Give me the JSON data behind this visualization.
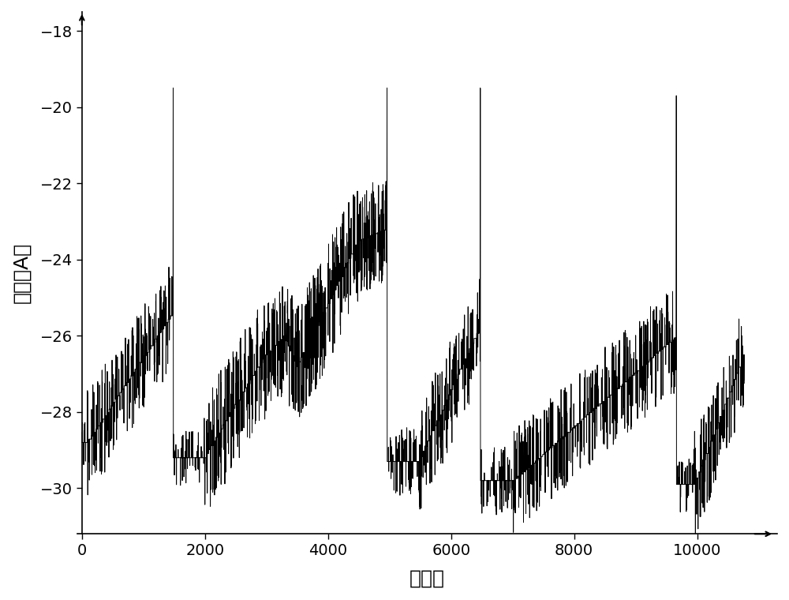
{
  "xlabel": "采样点",
  "ylabel": "电流（A）",
  "xlim": [
    -80,
    11300
  ],
  "ylim": [
    -31.2,
    -17.5
  ],
  "yticks": [
    -30,
    -28,
    -26,
    -24,
    -22,
    -20,
    -18
  ],
  "xticks": [
    0,
    2000,
    4000,
    6000,
    8000,
    10000
  ],
  "line_color": "#000000",
  "line_width": 0.7,
  "bg_color": "#ffffff",
  "figsize": [
    10.0,
    7.6
  ],
  "dpi": 100,
  "xlabel_fontsize": 18,
  "ylabel_fontsize": 18,
  "tick_fontsize": 14
}
